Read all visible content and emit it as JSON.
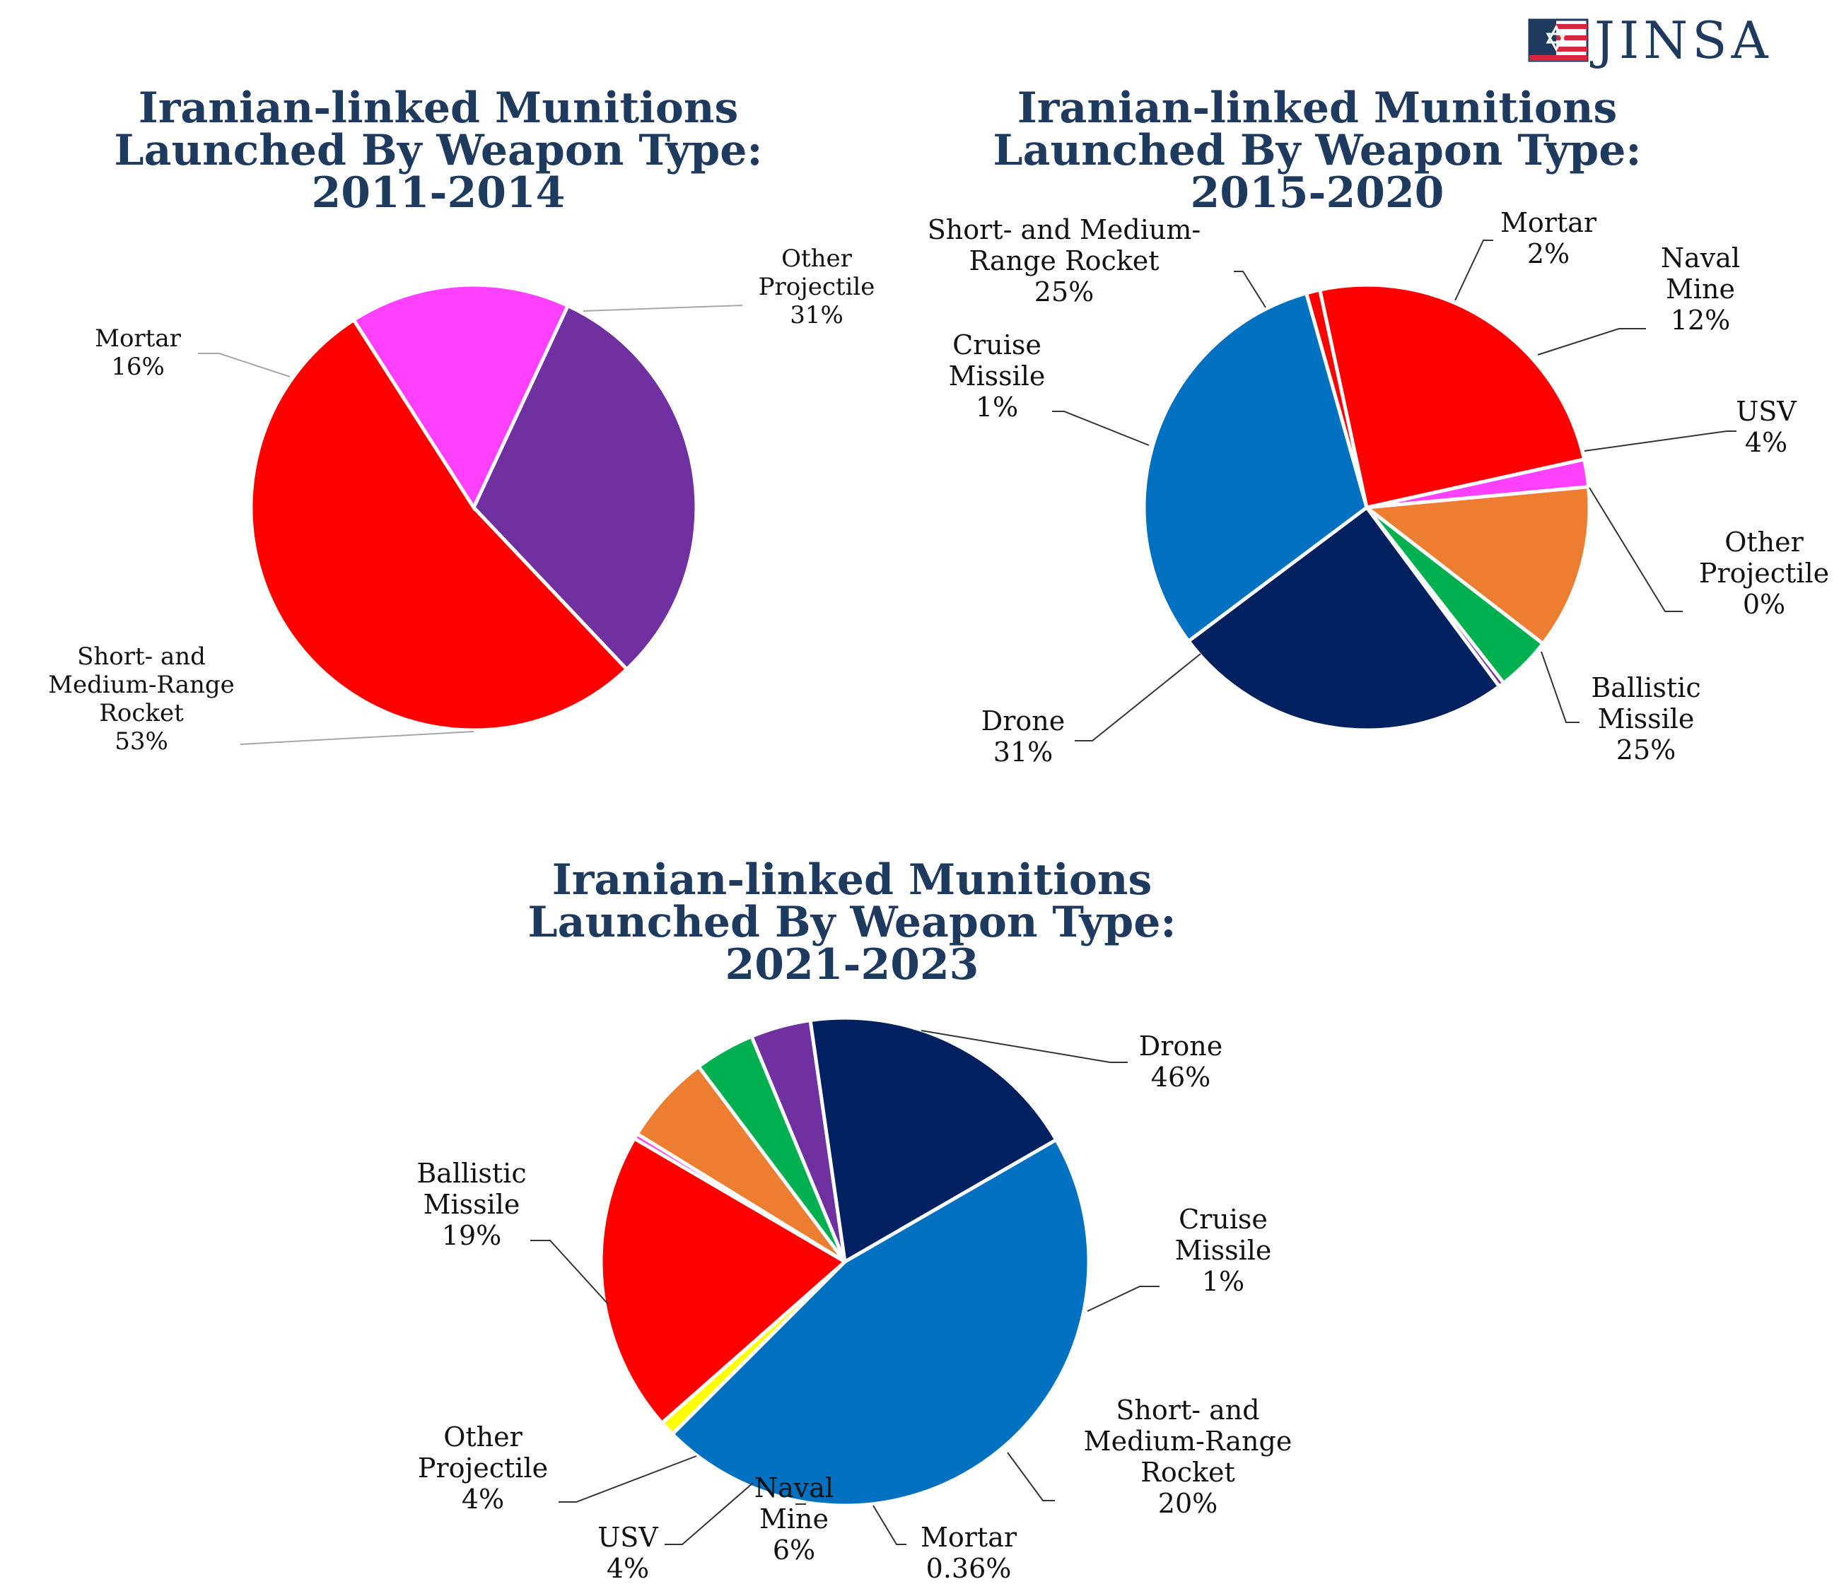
{
  "brand": {
    "logo_text": "JINSA",
    "colors": {
      "navy": "#1f3a5f",
      "red": "#d7263d",
      "blue": "#2a5d9f"
    }
  },
  "chart_data": [
    {
      "type": "pie",
      "title_lines": [
        "Iranian-linked Munitions",
        "Launched By Weapon Type:",
        "2011-2014"
      ],
      "slices": [
        {
          "name": "Other Projectile",
          "value": 31,
          "label_lines": [
            "Other",
            "Projectile",
            "31%"
          ],
          "color": "#7030a0"
        },
        {
          "name": "Short- and Medium-Range Rocket",
          "value": 53,
          "label_lines": [
            "Short- and",
            "Medium-Range",
            "Rocket",
            "53%"
          ],
          "color": "#ff0000"
        },
        {
          "name": "Mortar",
          "value": 16,
          "label_lines": [
            "Mortar",
            "16%"
          ],
          "color": "#ff40ff"
        }
      ]
    },
    {
      "type": "pie",
      "title_lines": [
        "Iranian-linked Munitions",
        "Launched By Weapon Type:",
        "2015-2020"
      ],
      "slices": [
        {
          "name": "Mortar",
          "value": 2,
          "label_lines": [
            "Mortar",
            "2%"
          ],
          "color": "#ff40ff"
        },
        {
          "name": "Naval Mine",
          "value": 12,
          "label_lines": [
            "Naval",
            "Mine",
            "12%"
          ],
          "color": "#ed7d31"
        },
        {
          "name": "USV",
          "value": 4,
          "label_lines": [
            "USV",
            "4%"
          ],
          "color": "#00b050"
        },
        {
          "name": "Other Projectile",
          "value": 0.4,
          "label_lines": [
            "Other",
            "Projectile",
            "0%"
          ],
          "color": "#7030a0"
        },
        {
          "name": "Ballistic Missile",
          "value": 25,
          "label_lines": [
            "Ballistic",
            "Missile",
            "25%"
          ],
          "color": "#002060"
        },
        {
          "name": "Drone",
          "value": 31,
          "label_lines": [
            "Drone",
            "31%"
          ],
          "color": "#0070c0"
        },
        {
          "name": "Cruise Missile",
          "value": 1,
          "label_lines": [
            "Cruise",
            "Missile",
            "1%"
          ],
          "color": "#ff0000"
        },
        {
          "name": "Short- and Medium-Range Rocket",
          "value": 25,
          "label_lines": [
            "Short- and Medium-",
            "Range Rocket",
            "25%"
          ],
          "color": "#ff0000"
        }
      ]
    },
    {
      "type": "pie",
      "title_lines": [
        "Iranian-linked Munitions",
        "Launched By Weapon Type:",
        "2021-2023"
      ],
      "slices": [
        {
          "name": "Drone",
          "value": 46,
          "label_lines": [
            "Drone",
            "46%"
          ],
          "color": "#0070c0"
        },
        {
          "name": "Cruise Missile",
          "value": 1,
          "label_lines": [
            "Cruise",
            "Missile",
            "1%"
          ],
          "color": "#ffff00"
        },
        {
          "name": "Short- and Medium-Range Rocket",
          "value": 20,
          "label_lines": [
            "Short- and",
            "Medium-Range",
            "Rocket",
            "20%"
          ],
          "color": "#ff0000"
        },
        {
          "name": "Mortar",
          "value": 0.36,
          "label_lines": [
            "Mortar",
            "0.36%"
          ],
          "color": "#ff40ff"
        },
        {
          "name": "Naval Mine",
          "value": 6,
          "label_lines": [
            "Naval",
            "Mine",
            "6%"
          ],
          "color": "#ed7d31"
        },
        {
          "name": "USV",
          "value": 4,
          "label_lines": [
            "USV",
            "4%"
          ],
          "color": "#00b050"
        },
        {
          "name": "Other Projectile",
          "value": 4,
          "label_lines": [
            "Other",
            "Projectile",
            "4%"
          ],
          "color": "#7030a0"
        },
        {
          "name": "Ballistic Missile",
          "value": 19,
          "label_lines": [
            "Ballistic",
            "Missile",
            "19%"
          ],
          "color": "#002060"
        }
      ]
    }
  ]
}
